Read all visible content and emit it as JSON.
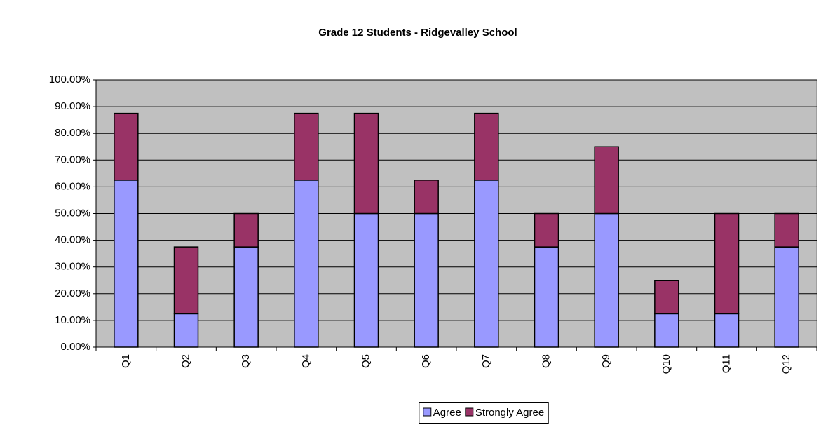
{
  "chart_data": {
    "type": "stacked_bar",
    "title": "Grade 12 Students - Ridgevalley School",
    "categories": [
      "Q1",
      "Q2",
      "Q3",
      "Q4",
      "Q5",
      "Q6",
      "Q7",
      "Q8",
      "Q9",
      "Q10",
      "Q11",
      "Q12"
    ],
    "series": [
      {
        "name": "Agree",
        "color": "#9999ff",
        "values": [
          62.5,
          12.5,
          37.5,
          62.5,
          50,
          50,
          62.5,
          37.5,
          50,
          12.5,
          12.5,
          37.5
        ]
      },
      {
        "name": "Strongly Agree",
        "color": "#993366",
        "values": [
          25,
          25,
          12.5,
          25,
          37.5,
          12.5,
          25,
          12.5,
          25,
          12.5,
          37.5,
          12.5
        ]
      }
    ],
    "ylim": [
      0,
      100
    ],
    "yticks": [
      {
        "value": 0,
        "label": "0.00%"
      },
      {
        "value": 10,
        "label": "10.00%"
      },
      {
        "value": 20,
        "label": "20.00%"
      },
      {
        "value": 30,
        "label": "30.00%"
      },
      {
        "value": 40,
        "label": "40.00%"
      },
      {
        "value": 50,
        "label": "50.00%"
      },
      {
        "value": 60,
        "label": "60.00%"
      },
      {
        "value": 70,
        "label": "70.00%"
      },
      {
        "value": 80,
        "label": "80.00%"
      },
      {
        "value": 90,
        "label": "90.00%"
      },
      {
        "value": 100,
        "label": "100.00%"
      }
    ],
    "grid": true,
    "legend": "bottom"
  }
}
